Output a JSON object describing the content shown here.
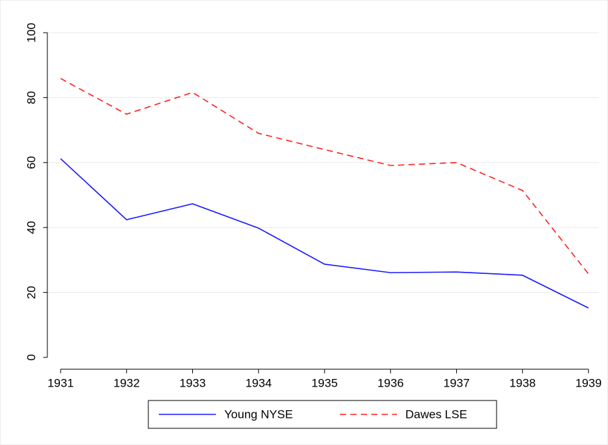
{
  "chart_data": {
    "type": "line",
    "x": [
      1931,
      1932,
      1933,
      1934,
      1935,
      1936,
      1937,
      1938,
      1939
    ],
    "xlim": [
      1931,
      1939
    ],
    "xticks": [
      1931,
      1932,
      1933,
      1934,
      1935,
      1936,
      1937,
      1938,
      1939
    ],
    "ylim": [
      0,
      100
    ],
    "yticks": [
      0,
      20,
      40,
      60,
      80,
      100
    ],
    "grid": true,
    "legend": "bottom",
    "series": [
      {
        "name": "Young NYSE",
        "color": "#1a1aff",
        "style": "solid",
        "values": [
          61.2,
          42.4,
          47.3,
          39.8,
          28.7,
          26.1,
          26.3,
          25.3,
          15.2
        ]
      },
      {
        "name": "Dawes LSE",
        "color": "#ff2020",
        "style": "dashed",
        "values": [
          85.9,
          74.9,
          81.6,
          69.0,
          64.0,
          59.1,
          60.0,
          51.4,
          25.7
        ]
      }
    ]
  }
}
